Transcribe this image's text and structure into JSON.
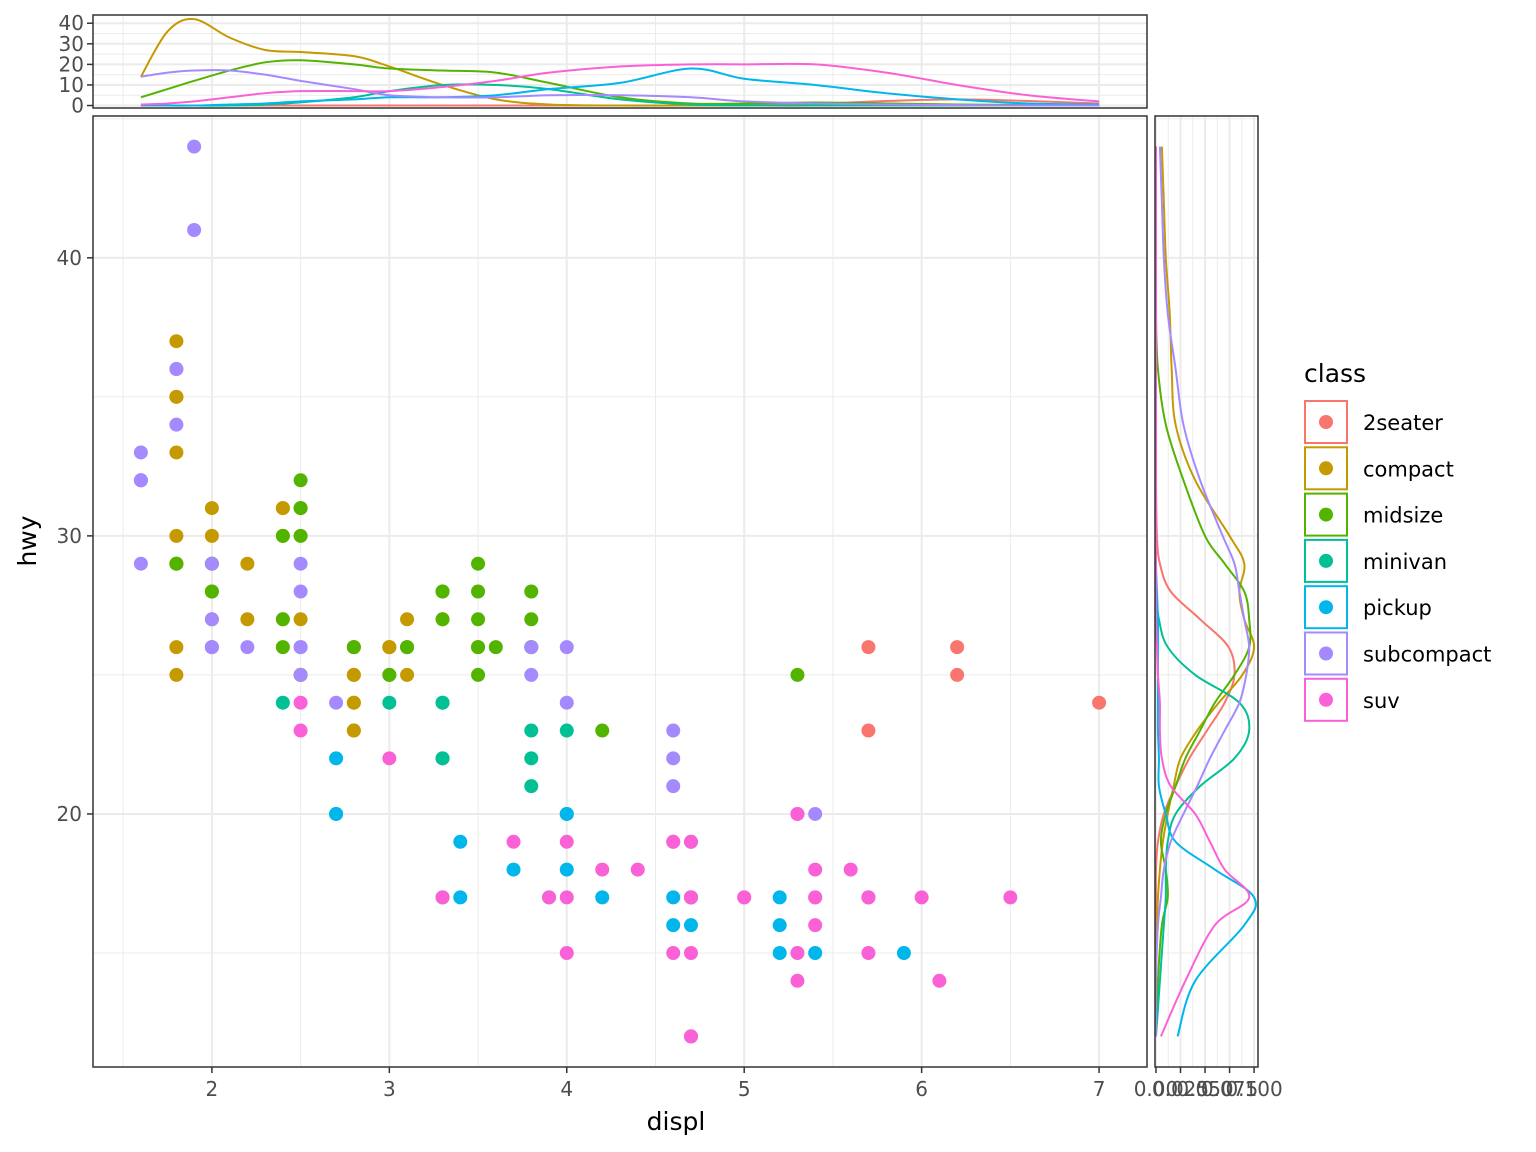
{
  "chart_data": {
    "type": "scatter",
    "title": "",
    "xlabel": "displ",
    "ylabel": "hwy",
    "xlim": [
      1.33,
      7.27
    ],
    "ylim": [
      10.9,
      45.1
    ],
    "xticks": [
      2,
      3,
      4,
      5,
      6,
      7
    ],
    "yticks": [
      20,
      30,
      40
    ],
    "grid": true,
    "legend": {
      "title": "class",
      "position": "right"
    },
    "colors": {
      "2seater": "#F8766D",
      "compact": "#C49A00",
      "midsize": "#53B400",
      "minivan": "#00C094",
      "pickup": "#00B6EB",
      "subcompact": "#A58AFF",
      "suv": "#FB61D7"
    },
    "series": [
      {
        "name": "2seater",
        "points": [
          [
            5.7,
            26
          ],
          [
            5.7,
            23
          ],
          [
            6.2,
            26
          ],
          [
            6.2,
            25
          ],
          [
            7.0,
            24
          ]
        ]
      },
      {
        "name": "compact",
        "points": [
          [
            1.8,
            29
          ],
          [
            1.8,
            29
          ],
          [
            2.0,
            31
          ],
          [
            2.0,
            30
          ],
          [
            2.8,
            26
          ],
          [
            2.8,
            26
          ],
          [
            3.1,
            27
          ],
          [
            1.8,
            26
          ],
          [
            1.8,
            25
          ],
          [
            2.0,
            28
          ],
          [
            2.0,
            27
          ],
          [
            2.8,
            25
          ],
          [
            2.8,
            25
          ],
          [
            3.1,
            25
          ],
          [
            2.2,
            27
          ],
          [
            2.2,
            29
          ],
          [
            2.4,
            31
          ],
          [
            2.4,
            31
          ],
          [
            3.0,
            26
          ],
          [
            3.0,
            26
          ],
          [
            1.8,
            30
          ],
          [
            1.8,
            33
          ],
          [
            1.8,
            35
          ],
          [
            1.8,
            37
          ],
          [
            2.0,
            29
          ],
          [
            2.0,
            26
          ],
          [
            2.8,
            24
          ],
          [
            1.8,
            35
          ],
          [
            2.5,
            25
          ],
          [
            2.5,
            27
          ],
          [
            2.5,
            25
          ],
          [
            2.5,
            25
          ],
          [
            3.3,
            27
          ],
          [
            2.8,
            23
          ],
          [
            2.8,
            23
          ],
          [
            2.4,
            27
          ],
          [
            2.4,
            30
          ],
          [
            3.0,
            26
          ],
          [
            2.8,
            24
          ]
        ]
      },
      {
        "name": "midsize",
        "points": [
          [
            2.4,
            26
          ],
          [
            2.4,
            30
          ],
          [
            3.1,
            26
          ],
          [
            3.5,
            29
          ],
          [
            3.6,
            26
          ],
          [
            2.4,
            27
          ],
          [
            3.0,
            25
          ],
          [
            3.3,
            28
          ],
          [
            3.3,
            28
          ],
          [
            3.3,
            27
          ],
          [
            3.8,
            27
          ],
          [
            3.8,
            28
          ],
          [
            3.8,
            26
          ],
          [
            3.5,
            26
          ],
          [
            3.5,
            28
          ],
          [
            1.8,
            29
          ],
          [
            2.0,
            29
          ],
          [
            2.0,
            28
          ],
          [
            2.5,
            31
          ],
          [
            2.5,
            32
          ],
          [
            2.5,
            31
          ],
          [
            2.5,
            30
          ],
          [
            3.5,
            25
          ],
          [
            3.5,
            27
          ],
          [
            4.2,
            23
          ],
          [
            5.3,
            25
          ],
          [
            3.5,
            26
          ],
          [
            3.1,
            26
          ],
          [
            3.8,
            26
          ],
          [
            2.8,
            26
          ],
          [
            3.0,
            25
          ]
        ]
      },
      {
        "name": "minivan",
        "points": [
          [
            2.4,
            24
          ],
          [
            3.0,
            24
          ],
          [
            3.3,
            22
          ],
          [
            3.3,
            22
          ],
          [
            3.3,
            24
          ],
          [
            3.3,
            24
          ],
          [
            3.3,
            17
          ],
          [
            3.8,
            22
          ],
          [
            3.8,
            21
          ],
          [
            3.8,
            23
          ],
          [
            4.0,
            23
          ]
        ]
      },
      {
        "name": "pickup",
        "points": [
          [
            2.7,
            20
          ],
          [
            2.7,
            20
          ],
          [
            2.7,
            22
          ],
          [
            3.4,
            17
          ],
          [
            3.4,
            19
          ],
          [
            3.7,
            18
          ],
          [
            4.0,
            20
          ],
          [
            4.0,
            20
          ],
          [
            4.0,
            18
          ],
          [
            4.2,
            17
          ],
          [
            4.6,
            17
          ],
          [
            4.6,
            16
          ],
          [
            4.7,
            17
          ],
          [
            4.7,
            16
          ],
          [
            4.7,
            12
          ],
          [
            5.2,
            17
          ],
          [
            5.2,
            16
          ],
          [
            5.2,
            15
          ],
          [
            5.4,
            15
          ],
          [
            5.7,
            17
          ],
          [
            5.9,
            15
          ],
          [
            4.7,
            19
          ],
          [
            4.7,
            17
          ],
          [
            3.9,
            17
          ]
        ]
      },
      {
        "name": "subcompact",
        "points": [
          [
            1.6,
            33
          ],
          [
            1.6,
            32
          ],
          [
            1.6,
            32
          ],
          [
            1.6,
            29
          ],
          [
            1.6,
            32
          ],
          [
            1.8,
            34
          ],
          [
            1.8,
            36
          ],
          [
            1.8,
            36
          ],
          [
            2.0,
            29
          ],
          [
            2.0,
            26
          ],
          [
            2.0,
            27
          ],
          [
            2.0,
            26
          ],
          [
            2.2,
            26
          ],
          [
            2.5,
            25
          ],
          [
            2.5,
            28
          ],
          [
            2.5,
            29
          ],
          [
            2.5,
            26
          ],
          [
            2.7,
            24
          ],
          [
            3.8,
            26
          ],
          [
            3.8,
            25
          ],
          [
            4.0,
            26
          ],
          [
            4.0,
            24
          ],
          [
            4.6,
            21
          ],
          [
            4.6,
            22
          ],
          [
            4.6,
            23
          ],
          [
            5.4,
            20
          ],
          [
            1.9,
            44
          ],
          [
            1.9,
            41
          ],
          [
            2.5,
            26
          ]
        ]
      },
      {
        "name": "suv",
        "points": [
          [
            5.3,
            20
          ],
          [
            5.3,
            15
          ],
          [
            5.3,
            20
          ],
          [
            5.7,
            17
          ],
          [
            6.5,
            17
          ],
          [
            4.7,
            17
          ],
          [
            4.7,
            19
          ],
          [
            4.7,
            17
          ],
          [
            5.7,
            17
          ],
          [
            6.1,
            14
          ],
          [
            4.0,
            19
          ],
          [
            4.2,
            18
          ],
          [
            4.4,
            18
          ],
          [
            4.6,
            19
          ],
          [
            5.4,
            17
          ],
          [
            5.4,
            18
          ],
          [
            5.0,
            17
          ],
          [
            3.0,
            22
          ],
          [
            3.7,
            19
          ],
          [
            4.0,
            17
          ],
          [
            4.7,
            17
          ],
          [
            4.7,
            15
          ],
          [
            4.7,
            12
          ],
          [
            5.7,
            15
          ],
          [
            6.0,
            17
          ],
          [
            4.6,
            15
          ],
          [
            5.4,
            16
          ],
          [
            5.6,
            18
          ],
          [
            3.9,
            17
          ],
          [
            4.0,
            15
          ],
          [
            4.6,
            19
          ],
          [
            5.0,
            17
          ],
          [
            2.5,
            24
          ],
          [
            2.5,
            23
          ],
          [
            3.3,
            17
          ],
          [
            4.7,
            12
          ],
          [
            5.3,
            14
          ],
          [
            5.4,
            17
          ]
        ]
      }
    ],
    "marginal_top": {
      "type": "density",
      "axis": "x",
      "yticks": [
        0,
        10,
        20,
        30,
        40
      ],
      "ylim": [
        -1.2,
        44
      ],
      "x_grid": [
        1.6,
        1.75,
        1.9,
        2.1,
        2.3,
        2.5,
        2.8,
        3.0,
        3.3,
        3.6,
        3.9,
        4.3,
        4.7,
        5.0,
        5.4,
        5.8,
        6.2,
        6.6,
        7.0
      ],
      "series": [
        {
          "name": "2seater",
          "values": [
            0,
            0,
            0,
            0,
            0,
            0,
            0,
            0,
            0,
            0,
            0,
            0,
            0,
            0.2,
            0.8,
            2.2,
            3.0,
            2.2,
            1.0
          ]
        },
        {
          "name": "compact",
          "values": [
            14,
            36,
            42,
            33,
            27,
            26,
            24,
            19,
            10,
            3,
            0.5,
            0,
            0,
            0,
            0,
            0,
            0,
            0,
            0
          ]
        },
        {
          "name": "midsize",
          "values": [
            4,
            8,
            12,
            17,
            21,
            22,
            20,
            18,
            17,
            16,
            11,
            4,
            1,
            1,
            1.5,
            1,
            0.5,
            0.3,
            0.1
          ]
        },
        {
          "name": "minivan",
          "values": [
            0,
            0,
            0,
            0,
            0.5,
            1.5,
            4,
            7,
            10,
            10,
            8,
            3,
            0.5,
            0,
            0,
            0,
            0,
            0,
            0
          ]
        },
        {
          "name": "pickup",
          "values": [
            0,
            0,
            0,
            0.5,
            1,
            2,
            3,
            4,
            4,
            5,
            8,
            11,
            18,
            13,
            10,
            6,
            3,
            1,
            0.5
          ]
        },
        {
          "name": "subcompact",
          "values": [
            14,
            16,
            17,
            17,
            15,
            12,
            8,
            5,
            4,
            4,
            5,
            5,
            4,
            2,
            1,
            0.5,
            0.2,
            0,
            0
          ]
        },
        {
          "name": "suv",
          "values": [
            0.5,
            1,
            2,
            4,
            6,
            7,
            7,
            7,
            9,
            12,
            16,
            19,
            20,
            20,
            20,
            16,
            10,
            5,
            2
          ]
        }
      ]
    },
    "marginal_right": {
      "type": "density",
      "axis": "y",
      "xticks": [
        0.0,
        0.025,
        0.05,
        0.075,
        0.1
      ],
      "xtick_labels": [
        "0.00",
        "0.025",
        "0.050",
        "0.075",
        "0.100"
      ],
      "xlim": [
        -0.001,
        0.104
      ],
      "y_grid": [
        12,
        14,
        16,
        17,
        18,
        19,
        20,
        21,
        22,
        23,
        24,
        25,
        26,
        27,
        28,
        29,
        30,
        32,
        34,
        36,
        38,
        40,
        42,
        44
      ],
      "series": [
        {
          "name": "2seater",
          "values": [
            0,
            0,
            0,
            0,
            0,
            0.002,
            0.008,
            0.02,
            0.034,
            0.052,
            0.07,
            0.08,
            0.074,
            0.045,
            0.015,
            0.004,
            0.001,
            0,
            0,
            0,
            0,
            0,
            0,
            0
          ]
        },
        {
          "name": "compact",
          "values": [
            0,
            0,
            0.001,
            0.002,
            0.004,
            0.007,
            0.012,
            0.018,
            0.025,
            0.042,
            0.064,
            0.088,
            0.1,
            0.09,
            0.085,
            0.09,
            0.075,
            0.04,
            0.02,
            0.016,
            0.014,
            0.01,
            0.008,
            0.006
          ]
        },
        {
          "name": "midsize",
          "values": [
            0,
            0.002,
            0.006,
            0.012,
            0.01,
            0.005,
            0.01,
            0.02,
            0.03,
            0.045,
            0.06,
            0.08,
            0.095,
            0.095,
            0.09,
            0.07,
            0.05,
            0.028,
            0.01,
            0.002,
            0,
            0,
            0,
            0
          ]
        },
        {
          "name": "minivan",
          "values": [
            0,
            0.004,
            0.008,
            0.01,
            0.01,
            0.012,
            0.02,
            0.045,
            0.08,
            0.095,
            0.085,
            0.04,
            0.012,
            0.003,
            0,
            0,
            0,
            0,
            0,
            0,
            0,
            0,
            0,
            0
          ]
        },
        {
          "name": "pickup",
          "values": [
            0.022,
            0.04,
            0.09,
            0.1,
            0.06,
            0.02,
            0.01,
            0.003,
            0.003,
            0.002,
            0.002,
            0.002,
            0.002,
            0.002,
            0.001,
            0,
            0,
            0,
            0,
            0,
            0,
            0,
            0,
            0
          ]
        },
        {
          "name": "subcompact",
          "values": [
            0,
            0,
            0.002,
            0.005,
            0.008,
            0.015,
            0.028,
            0.042,
            0.055,
            0.07,
            0.085,
            0.092,
            0.095,
            0.09,
            0.085,
            0.08,
            0.068,
            0.045,
            0.028,
            0.02,
            0.012,
            0.008,
            0.006,
            0.004
          ]
        },
        {
          "name": "suv",
          "values": [
            0.005,
            0.03,
            0.06,
            0.095,
            0.07,
            0.055,
            0.04,
            0.015,
            0.006,
            0.004,
            0.004,
            0.002,
            0.001,
            0,
            0,
            0,
            0,
            0,
            0,
            0,
            0,
            0,
            0,
            0
          ]
        }
      ]
    }
  }
}
